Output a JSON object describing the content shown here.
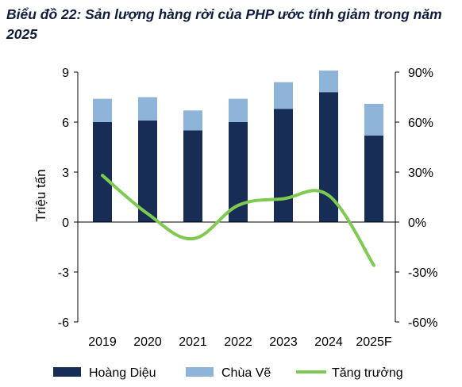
{
  "chart_data": {
    "type": "bar",
    "title": "Biểu đồ 22: Sản lượng hàng rời của PHP ước tính giảm trong năm 2025",
    "ylabel": "Triệu tấn",
    "categories": [
      "2019",
      "2020",
      "2021",
      "2022",
      "2023",
      "2024",
      "2025F"
    ],
    "ylim": [
      -6,
      9
    ],
    "yticks": [
      "-6",
      "-3",
      "0",
      "3",
      "6",
      "9"
    ],
    "y2lim": [
      -60,
      90
    ],
    "y2ticks": [
      "-60%",
      "-30%",
      "0%",
      "30%",
      "60%",
      "90%"
    ],
    "stacked": true,
    "series": [
      {
        "name": "Hoàng Diệu",
        "kind": "bar",
        "color": "#172d55",
        "values": [
          6.0,
          6.1,
          5.5,
          6.0,
          6.8,
          7.8,
          5.2
        ]
      },
      {
        "name": "Chùa Vẽ",
        "kind": "bar",
        "color": "#8eb4da",
        "values": [
          1.4,
          1.4,
          1.2,
          1.4,
          1.6,
          1.3,
          1.9
        ]
      },
      {
        "name": "Tăng trưởng",
        "kind": "line",
        "axis": "right",
        "color": "#7fca50",
        "values": [
          28,
          5,
          -10,
          10,
          14,
          16,
          -26
        ]
      }
    ],
    "legend": "bottom",
    "grid": false
  }
}
